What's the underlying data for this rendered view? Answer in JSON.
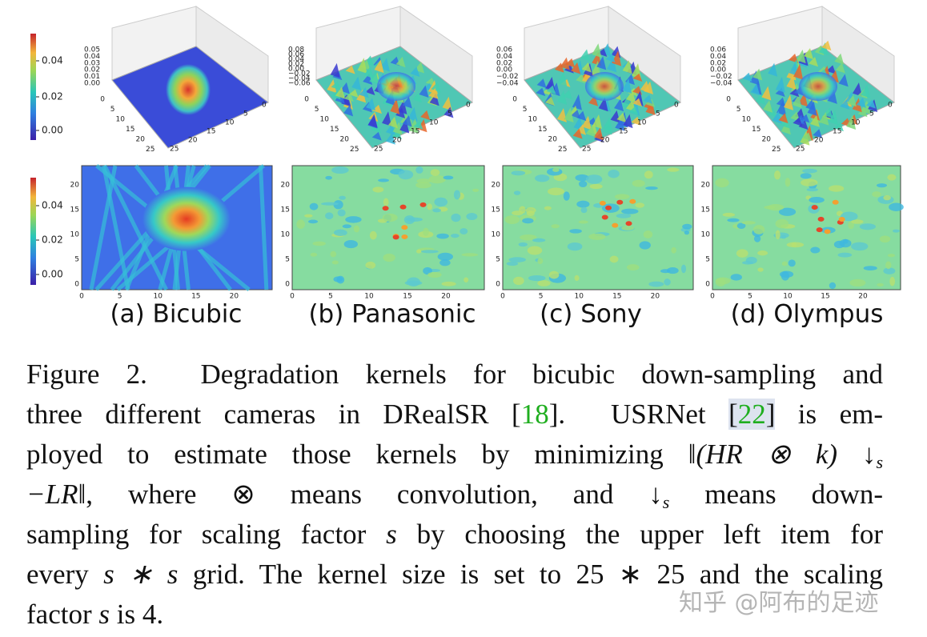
{
  "colorbars": [
    {
      "ticks": [
        "0.04",
        "0.02",
        "0.00"
      ]
    },
    {
      "ticks": [
        "0.04",
        "0.02",
        "0.00"
      ]
    }
  ],
  "panels": [
    {
      "label": "(a) Bicubic",
      "surface_zticks": [
        "0.05",
        "0.04",
        "0.03",
        "0.02",
        "0.01",
        "0.00"
      ],
      "surface_left_ticks": [
        "0",
        "5",
        "10",
        "15",
        "20",
        "25"
      ],
      "surface_right_ticks": [
        "25",
        "20",
        "15",
        "10",
        "5",
        "0"
      ],
      "heatmap_yticks": [
        "20",
        "15",
        "10",
        "5",
        "0"
      ],
      "heatmap_xticks": [
        "0",
        "5",
        "10",
        "15",
        "20"
      ]
    },
    {
      "label": "(b) Panasonic",
      "surface_zticks": [
        "0.08",
        "0.06",
        "0.04",
        "0.02",
        "0.00",
        "−0.02",
        "−0.04",
        "−0.06"
      ],
      "surface_left_ticks": [
        "0",
        "5",
        "10",
        "15",
        "20",
        "25"
      ],
      "surface_right_ticks": [
        "25",
        "20",
        "15",
        "10",
        "5",
        "0"
      ],
      "heatmap_yticks": [
        "20",
        "15",
        "10",
        "5",
        "0"
      ],
      "heatmap_xticks": [
        "0",
        "5",
        "10",
        "15",
        "20"
      ]
    },
    {
      "label": "(c) Sony",
      "surface_zticks": [
        "0.06",
        "0.04",
        "0.02",
        "0.00",
        "−0.02",
        "−0.04"
      ],
      "surface_left_ticks": [
        "0",
        "5",
        "10",
        "15",
        "20",
        "25"
      ],
      "surface_right_ticks": [
        "25",
        "20",
        "15",
        "10",
        "5",
        "0"
      ],
      "heatmap_yticks": [
        "20",
        "15",
        "10",
        "5",
        "0"
      ],
      "heatmap_xticks": [
        "0",
        "5",
        "10",
        "15",
        "20"
      ]
    },
    {
      "label": "(d) Olympus",
      "surface_zticks": [
        "0.06",
        "0.04",
        "0.02",
        "0.00",
        "−0.02",
        "−0.04"
      ],
      "surface_left_ticks": [
        "0",
        "5",
        "10",
        "15",
        "20",
        "25"
      ],
      "surface_right_ticks": [
        "25",
        "20",
        "15",
        "10",
        "5",
        "0"
      ],
      "heatmap_yticks": [
        "20",
        "15",
        "10",
        "5",
        "0"
      ],
      "heatmap_xticks": [
        "0",
        "5",
        "10",
        "15",
        "20"
      ]
    }
  ],
  "caption": {
    "lines": [
      [
        "Figure 2.  Degradation kernels for bicubic down-sampling and"
      ],
      [
        "three different cameras in DRealSR [",
        "18",
        "].  USRNet ",
        "[",
        "22",
        "]",
        " is em-"
      ],
      [
        "ployed to estimate those kernels by minimizing ",
        "‖(HR ⊗ k) ↓",
        "s"
      ],
      [
        "−LR‖",
        ", where ⊗ means convolution, and ",
        "↓",
        "s",
        " means down-"
      ],
      [
        "sampling for scaling factor ",
        "s",
        " by choosing the upper left item for"
      ],
      [
        "every ",
        "s ∗ s",
        " grid. The kernel size is set to 25 ∗ 25 and the scaling"
      ],
      [
        "factor ",
        "s",
        " is 4."
      ]
    ]
  },
  "watermark": "知乎 @阿布的足迹"
}
